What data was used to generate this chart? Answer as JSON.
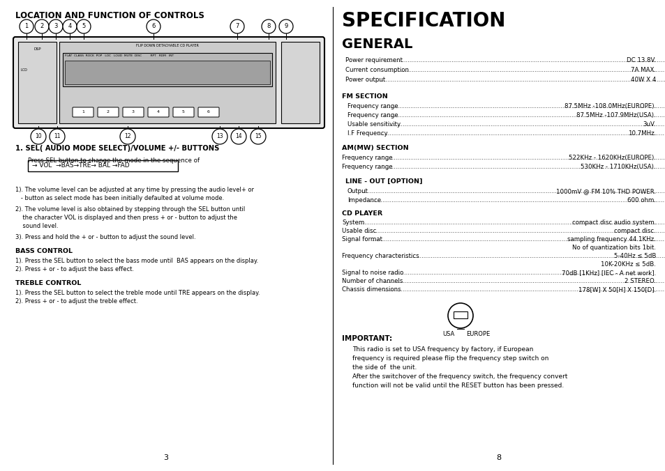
{
  "bg_color": "#ffffff",
  "left_title": "LOCATION AND FUNCTION OF CONTROLS",
  "right_title1": "SPECIFICATION",
  "right_title2": "GENERAL",
  "general_specs": [
    [
      "Power requirement",
      "DC 13.8V."
    ],
    [
      "Current consumption",
      "7A MAX."
    ],
    [
      "Power output",
      "40W X 4"
    ]
  ],
  "fm_section_title": "FM SECTION",
  "fm_specs": [
    [
      "Frequency range",
      "87.5MHz -108.0MHz(EUROPE)."
    ],
    [
      "Frequency range",
      "87.5MHz -107.9MHz(USA)."
    ],
    [
      "Usable sensitivity",
      "3uV."
    ],
    [
      "I.F Frequency",
      "10.7MHz."
    ]
  ],
  "am_section_title": "AM(MW) SECTION",
  "am_specs": [
    [
      "Frequency range",
      "522KHz - 1620KHz(EUROPE)."
    ],
    [
      "Frequency range",
      "530KHz - 1710KHz(USA)."
    ]
  ],
  "line_section_title": "LINE - OUT [OPTION]",
  "line_specs": [
    [
      "Output",
      "1000mV @ FM 10% THD POWER."
    ],
    [
      "Impedance",
      "600 ohm."
    ]
  ],
  "cd_section_title": "CD PLAYER",
  "cd_specs": [
    [
      "System",
      "compact disc audio system.",
      ""
    ],
    [
      "Usable disc",
      "compact disc.",
      ""
    ],
    [
      "Signal format",
      "sampling frequency 44.1KHz.",
      "No of quantization bits 1bit."
    ],
    [
      "Frequency characteristics",
      "5-40Hz ≤ 5dB",
      "10K-20KHz ≤ 5dB."
    ],
    [
      "Signal to noise radio",
      "70dB [1KHz] [IEC - A net work].",
      ""
    ],
    [
      "Number of channels",
      "2 STEREO.",
      ""
    ],
    [
      "Chassis dimensions",
      "178[W] X 50[H] X 150[D].",
      ""
    ]
  ],
  "important_title": "IMPORTANT:",
  "important_lines": [
    "This radio is set to USA frequency by factory, if European",
    "frequency is required please flip the frequency step switch on",
    "the side of  the unit.",
    "After the switchover of the frequency switch, the frequency convert",
    "function will not be valid until the RESET button has been pressed."
  ],
  "sel_title": "1. SEL( AUDIO MODE SELECT)/VOLUME +/- BUTTONS",
  "sel_subtitle": "Press SEL button to change the mode in the sequence of",
  "sel_sequence": "→ VOL  →BAS→TRE→ BAL →FAD",
  "numbered_items": [
    [
      "1). The volume level can be adjusted at any time by pressing the audio level+ or",
      "   - button as select mode has been initially defaulted at volume mode."
    ],
    [
      "2). The volume level is also obtained by stepping through the SEL button until",
      "    the character VOL is displayed and then press + or - button to adjust the",
      "    sound level."
    ],
    [
      "3). Press and hold the + or - button to adjust the sound level."
    ]
  ],
  "bass_title": "BASS CONTROL",
  "bass_items": [
    "1). Press the SEL button to select the bass mode until  BAS appears on the display.",
    "2). Press + or - to adjust the bass effect."
  ],
  "treble_title": "TREBLE CONTROL",
  "treble_items": [
    "1). Press the SEL button to select the treble mode until TRE appears on the display.",
    "2). Press + or - to adjust the treble effect."
  ],
  "page_left": "3",
  "page_right": "8",
  "top_callouts": [
    [
      38,
      "1"
    ],
    [
      60,
      "2"
    ],
    [
      80,
      "3"
    ],
    [
      100,
      "4"
    ],
    [
      120,
      "5"
    ],
    [
      220,
      "6"
    ],
    [
      340,
      "7"
    ],
    [
      385,
      "8"
    ],
    [
      410,
      "9"
    ]
  ],
  "bot_callouts": [
    [
      55,
      "10"
    ],
    [
      82,
      "11"
    ],
    [
      183,
      "12"
    ],
    [
      315,
      "13"
    ],
    [
      342,
      "14"
    ],
    [
      370,
      "15"
    ]
  ]
}
